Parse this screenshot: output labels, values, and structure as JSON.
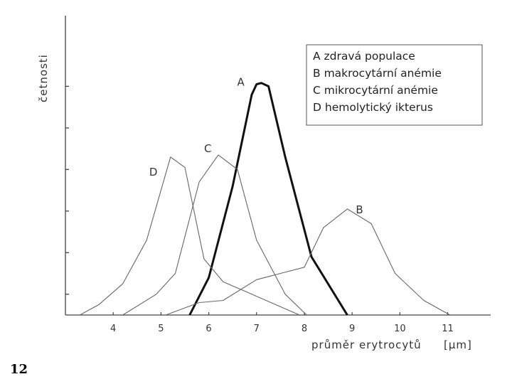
{
  "page": {
    "number": "12"
  },
  "chart_data": {
    "type": "line",
    "xlabel": "průměr erytrocytů",
    "xunit": "[μm]",
    "ylabel": "četnosti",
    "xlim": [
      3,
      11.9
    ],
    "ylim": [
      0,
      7.2
    ],
    "xticks": [
      4,
      5,
      6,
      7,
      8,
      9,
      10,
      11
    ],
    "yticks": [
      0.5,
      1.5,
      2.5,
      3.5,
      4.5,
      5.5
    ],
    "grid": false,
    "legend_position": "top-right",
    "legend": [
      {
        "key": "A",
        "text": "zdravá populace"
      },
      {
        "key": "B",
        "text": "makrocytární anémie"
      },
      {
        "key": "C",
        "text": "mikrocytární anémie"
      },
      {
        "key": "D",
        "text": "hemolytický ikterus"
      }
    ],
    "series": [
      {
        "name": "A",
        "bold": true,
        "x": [
          5.6,
          6.0,
          6.5,
          6.9,
          7.0,
          7.1,
          7.25,
          7.6,
          8.15,
          8.9
        ],
        "y": [
          0,
          0.9,
          3.1,
          5.3,
          5.55,
          5.58,
          5.5,
          3.8,
          1.4,
          0
        ]
      },
      {
        "name": "B",
        "bold": false,
        "x": [
          5.1,
          5.8,
          6.3,
          7.0,
          7.5,
          8.0,
          8.4,
          8.9,
          9.4,
          9.9,
          10.5,
          11.05
        ],
        "y": [
          0,
          0.3,
          0.35,
          0.85,
          1.0,
          1.15,
          2.1,
          2.55,
          2.2,
          1.0,
          0.35,
          0
        ]
      },
      {
        "name": "C",
        "bold": false,
        "x": [
          4.2,
          4.9,
          5.3,
          5.8,
          6.2,
          6.6,
          7.0,
          7.6,
          8.05
        ],
        "y": [
          0,
          0.5,
          1.0,
          3.2,
          3.85,
          3.5,
          1.8,
          0.5,
          0
        ]
      },
      {
        "name": "D",
        "bold": false,
        "x": [
          3.3,
          3.7,
          4.2,
          4.7,
          5.2,
          5.5,
          5.9,
          6.3,
          6.8,
          7.4,
          7.9
        ],
        "y": [
          0,
          0.25,
          0.75,
          1.8,
          3.8,
          3.55,
          1.35,
          0.8,
          0.55,
          0.25,
          0
        ]
      }
    ]
  }
}
